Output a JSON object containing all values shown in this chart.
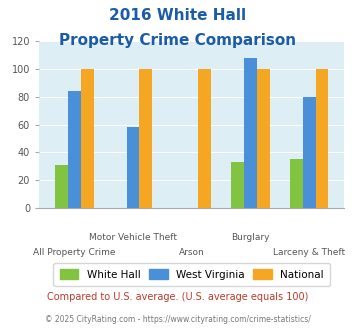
{
  "title_line1": "2016 White Hall",
  "title_line2": "Property Crime Comparison",
  "categories": [
    "All Property Crime",
    "Motor Vehicle Theft",
    "Arson",
    "Burglary",
    "Larceny & Theft"
  ],
  "x_labels_top": [
    "",
    "Motor Vehicle Theft",
    "",
    "Burglary",
    ""
  ],
  "x_labels_bottom": [
    "All Property Crime",
    "",
    "Arson",
    "",
    "Larceny & Theft"
  ],
  "white_hall": [
    31,
    0,
    0,
    33,
    35
  ],
  "west_virginia": [
    84,
    58,
    0,
    108,
    80
  ],
  "national": [
    100,
    100,
    100,
    100,
    100
  ],
  "bar_color_wh": "#82c341",
  "bar_color_wv": "#4a90d9",
  "bar_color_nat": "#f5a623",
  "bg_color": "#ddeef4",
  "title_color": "#1a5ca8",
  "ylim": [
    0,
    120
  ],
  "yticks": [
    0,
    20,
    40,
    60,
    80,
    100,
    120
  ],
  "footnote1": "Compared to U.S. average. (U.S. average equals 100)",
  "footnote2": "© 2025 CityRating.com - https://www.cityrating.com/crime-statistics/",
  "footnote1_color": "#c0392b",
  "footnote2_color": "#777777",
  "legend_labels": [
    "White Hall",
    "West Virginia",
    "National"
  ]
}
